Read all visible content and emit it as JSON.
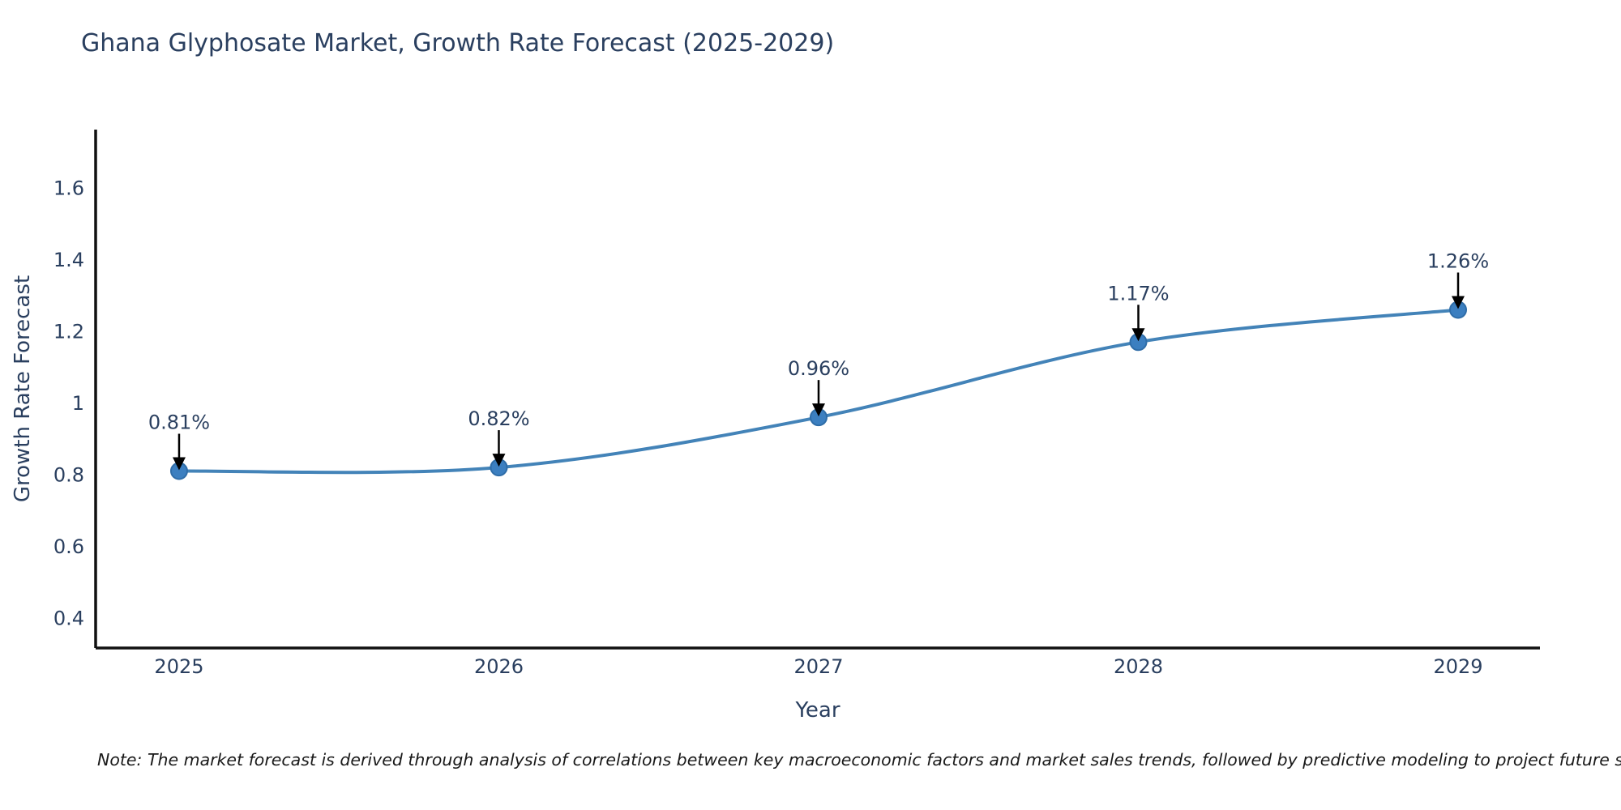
{
  "title": "Ghana Glyphosate Market, Growth Rate Forecast (2025-2029)",
  "note": "Note: The market forecast is derived through analysis of correlations between key macroeconomic factors and market sales trends, followed by predictive modeling to project future sales",
  "chart_data": {
    "type": "line",
    "title": "Ghana Glyphosate Market, Growth Rate Forecast (2025-2029)",
    "xlabel": "Year",
    "ylabel": "Growth Rate Forecast",
    "x": [
      2025,
      2026,
      2027,
      2028,
      2029
    ],
    "series": [
      {
        "name": "Growth Rate Forecast",
        "values": [
          0.81,
          0.82,
          0.96,
          1.17,
          1.26
        ]
      }
    ],
    "point_labels": [
      "0.81%",
      "0.82%",
      "0.96%",
      "1.17%",
      "1.26%"
    ],
    "x_tick_labels": [
      "2025",
      "2026",
      "2027",
      "2028",
      "2029"
    ],
    "y_tick_values": [
      0.4,
      0.6,
      0.8,
      1,
      1.2,
      1.4,
      1.6
    ],
    "y_tick_labels": [
      "0.4",
      "0.6",
      "0.8",
      "1",
      "1.2",
      "1.4",
      "1.6"
    ],
    "xlim": [
      2024.739,
      2029.256
    ],
    "ylim": [
      0.316,
      1.763
    ],
    "grid": false,
    "legend": "none",
    "line_shape": "spline",
    "colors": {
      "line": "#4383b8",
      "marker": "#3c7fc0",
      "marker_edge": "#2f6da8",
      "axis": "#111111",
      "text": "#2a3f5f",
      "annotation_arrow": "#000000"
    }
  }
}
